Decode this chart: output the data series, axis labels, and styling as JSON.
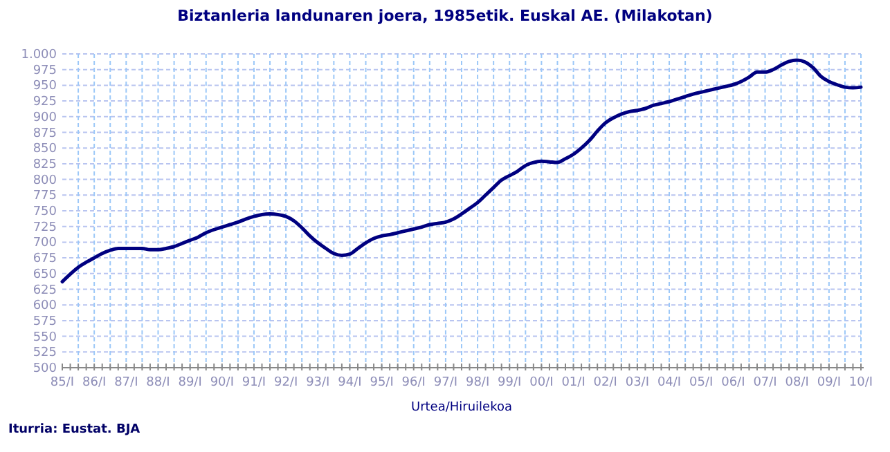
{
  "chart_data": {
    "type": "line",
    "title": "Biztanleria landunaren joera, 1985etik. Euskal AE. (Milakotan)",
    "xlabel": "Urtea/Hiruilekoa",
    "annotations": [
      "Iturria: Eustat. BJA"
    ],
    "categories": [
      "85/I",
      null,
      null,
      null,
      "86/I",
      null,
      null,
      null,
      "87/I",
      null,
      null,
      null,
      "88/I",
      null,
      null,
      null,
      "89/I",
      null,
      null,
      null,
      "90/I",
      null,
      null,
      null,
      "91/I",
      null,
      null,
      null,
      "92/I",
      null,
      null,
      null,
      "93/I",
      null,
      null,
      null,
      "94/I",
      null,
      null,
      null,
      "95/I",
      null,
      null,
      null,
      "96/I",
      null,
      null,
      null,
      "97/I",
      null,
      null,
      null,
      "98/I",
      null,
      null,
      null,
      "99/I",
      null,
      null,
      null,
      "00/I",
      null,
      null,
      null,
      "01/I",
      null,
      null,
      null,
      "02/I",
      null,
      null,
      null,
      "03/I",
      null,
      null,
      null,
      "04/I",
      null,
      null,
      null,
      "05/I",
      null,
      null,
      null,
      "06/I",
      null,
      null,
      null,
      "07/I",
      null,
      null,
      null,
      "08/I",
      null,
      null,
      null,
      "09/I",
      null,
      null,
      null,
      "10/I"
    ],
    "series": [
      {
        "color": "#000080",
        "values": [
          637,
          649,
          660,
          668,
          675,
          682,
          687,
          690,
          690,
          690,
          690,
          688,
          688,
          690,
          693,
          698,
          703,
          708,
          715,
          720,
          724,
          728,
          732,
          737,
          741,
          744,
          745,
          744,
          741,
          734,
          723,
          710,
          699,
          690,
          682,
          679,
          681,
          690,
          699,
          706,
          710,
          712,
          715,
          718,
          721,
          724,
          728,
          730,
          732,
          737,
          745,
          754,
          763,
          775,
          787,
          799,
          806,
          813,
          822,
          827,
          829,
          828,
          827,
          833,
          840,
          850,
          862,
          877,
          890,
          898,
          904,
          908,
          910,
          913,
          918,
          921,
          924,
          928,
          932,
          936,
          939,
          942,
          945,
          948,
          951,
          956,
          963,
          971,
          971,
          975,
          982,
          988,
          990,
          987,
          978,
          964,
          956,
          951,
          947,
          946,
          947
        ]
      }
    ],
    "ylim": [
      500,
      1000
    ],
    "yticks": [
      500,
      525,
      550,
      575,
      600,
      625,
      650,
      675,
      700,
      725,
      750,
      775,
      800,
      825,
      850,
      875,
      900,
      925,
      950,
      975,
      {
        "value": 1000,
        "label": "1.000"
      }
    ],
    "grid": true,
    "line_style": "solid",
    "marker": "none"
  }
}
